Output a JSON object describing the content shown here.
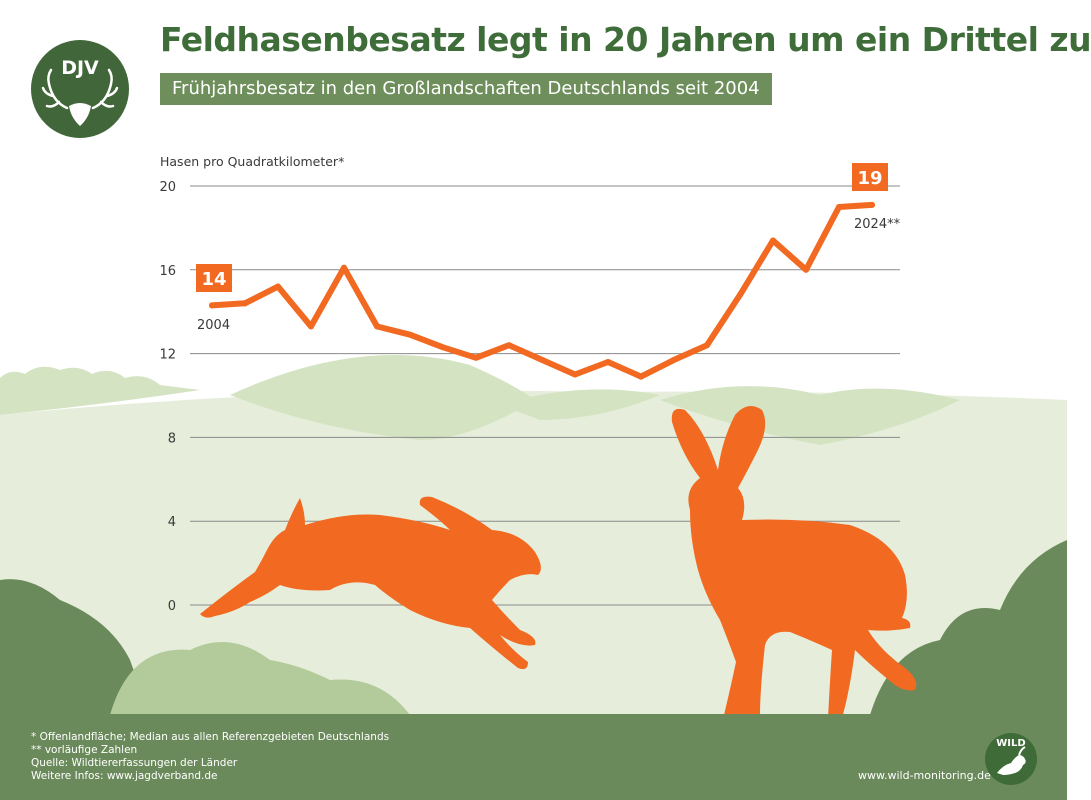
{
  "header": {
    "title": "Feldhasenbesatz legt in 20 Jahren um ein Drittel zu",
    "subtitle": "Frühjahrsbesatz in den Großlandschaften Deutschlands seit 2004"
  },
  "logos": {
    "djv": "DJV",
    "wild": "WILD"
  },
  "chart_data": {
    "type": "line",
    "title": "Feldhasenbesatz legt in 20 Jahren um ein Drittel zu",
    "ylabel": "Hasen pro Quadratkilometer*",
    "xlabel": "",
    "ylim": [
      0,
      20
    ],
    "yticks": [
      0,
      4,
      8,
      12,
      16,
      20
    ],
    "grid": true,
    "x": [
      2004,
      2005,
      2006,
      2007,
      2008,
      2009,
      2010,
      2011,
      2012,
      2013,
      2014,
      2015,
      2016,
      2017,
      2018,
      2019,
      2020,
      2021,
      2022,
      2023,
      2024
    ],
    "series": [
      {
        "name": "Frühjahrsbesatz",
        "values": [
          14.3,
          14.4,
          15.2,
          13.3,
          16.1,
          13.3,
          12.9,
          12.3,
          11.8,
          12.4,
          11.7,
          11.0,
          11.6,
          10.9,
          11.7,
          12.4,
          14.8,
          17.4,
          16.0,
          19.0,
          19.1
        ]
      }
    ],
    "annotations": {
      "start_value": "14",
      "start_year": "2004",
      "end_value": "19",
      "end_year": "2024**"
    },
    "color": "#f26a21"
  },
  "footer": {
    "note1": "* Offenlandfläche; Median aus allen Referenzgebieten Deutschlands",
    "note2": "** vorläufige Zahlen",
    "source": "Quelle: Wildtiererfassungen der Länder",
    "info": "Weitere Infos: www.jagdverband.de",
    "url": "www.wild-monitoring.de"
  },
  "colors": {
    "accent": "#f26a21",
    "dark_green": "#3f6d3a",
    "mid_green": "#6b8a5b",
    "light_green": "#e6eedb",
    "hill_green": "#d4e3c2",
    "bush_green": "#b3cb9b"
  }
}
